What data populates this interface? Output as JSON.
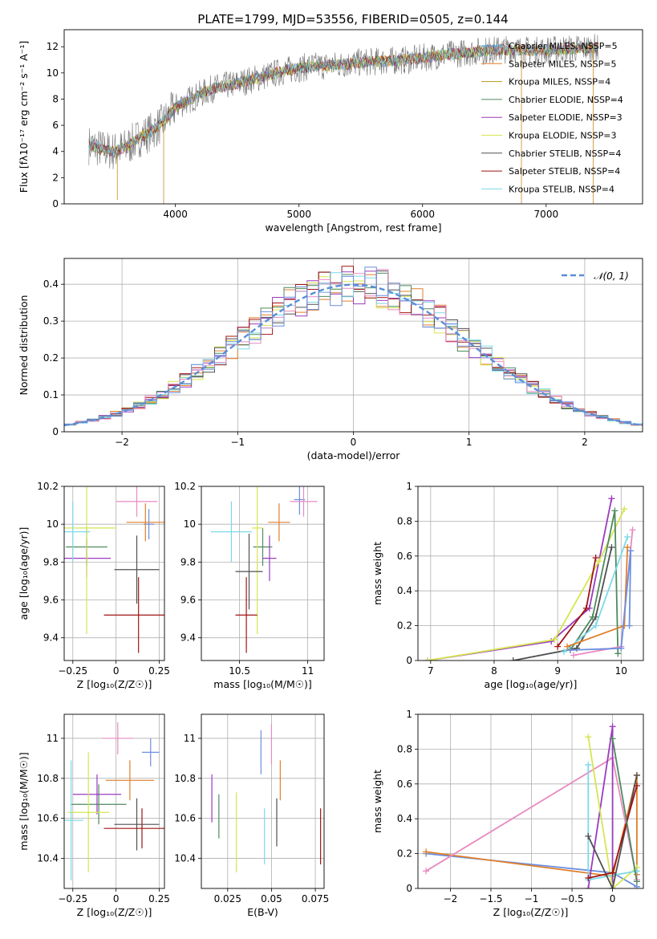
{
  "figure": {
    "title": "PLATE=1799, MJD=53556, FIBERID=0505, z=0.144"
  },
  "colors": [
    "#3E9EE3",
    "#E07F2A",
    "#B79A1C",
    "#4E8A5E",
    "#9A3BBF",
    "#D5E651",
    "#505050",
    "#A01515",
    "#7BD9E8"
  ],
  "chart_data": [
    {
      "id": "spectrum",
      "type": "line",
      "xlabel": "wavelength [Angstrom, rest frame]",
      "ylabel": "Flux [fλ10⁻¹⁷ erg cm⁻² s⁻¹ A⁻¹]",
      "xlim": [
        3100,
        7780
      ],
      "ylim": [
        0,
        13.3
      ],
      "xticks": [
        4000,
        5000,
        6000,
        7000
      ],
      "yticks": [
        0,
        2,
        4,
        6,
        8,
        10,
        12
      ],
      "grid": false,
      "legend": "upper right",
      "data_profile_x": [
        3300,
        3400,
        3500,
        3600,
        3700,
        3800,
        3900,
        4000,
        4100,
        4300,
        4500,
        4700,
        4900,
        5100,
        5300,
        5500,
        5700,
        5900,
        6100,
        6300,
        6500,
        6700,
        6900,
        7100,
        7300,
        7400
      ],
      "data_profile_y": [
        4.5,
        4.2,
        4.0,
        4.3,
        5.0,
        5.5,
        6.2,
        7.4,
        7.9,
        8.8,
        9.2,
        9.7,
        10.2,
        10.5,
        10.6,
        10.8,
        10.9,
        11.0,
        11.3,
        11.5,
        11.7,
        11.8,
        11.7,
        11.8,
        11.9,
        11.9
      ],
      "series": [
        {
          "name": "Chabrier MILES, NSSP=5"
        },
        {
          "name": "Salpeter MILES, NSSP=5"
        },
        {
          "name": "Kroupa MILES, NSSP=4"
        },
        {
          "name": "Chabrier ELODIE, NSSP=4"
        },
        {
          "name": "Salpeter ELODIE, NSSP=3"
        },
        {
          "name": "Kroupa ELODIE, NSSP=3"
        },
        {
          "name": "Chabrier STELIB, NSSP=4"
        },
        {
          "name": "Salpeter STELIB, NSSP=4"
        },
        {
          "name": "Kroupa STELIB, NSSP=4"
        }
      ]
    },
    {
      "id": "residuals",
      "type": "line",
      "xlabel": "(data-model)/error",
      "ylabel": "Normed distribution",
      "xlim": [
        -2.5,
        2.5
      ],
      "ylim": [
        0,
        0.47
      ],
      "xticks": [
        -2,
        -1,
        0,
        1,
        2
      ],
      "yticks": [
        0.0,
        0.1,
        0.2,
        0.3,
        0.4
      ],
      "grid": true,
      "legend": "upper right",
      "gauss_label": "𝒩(0, 1)",
      "bin_edges_start": -2.5,
      "bin_width": 0.1,
      "n_bins": 50
    },
    {
      "id": "age_vs_Z",
      "type": "scatter",
      "xlabel": "Z [log₁₀(Z/Z☉)]",
      "ylabel": "age  [log₁₀(age/yr)]",
      "xlim": [
        -0.3,
        0.28
      ],
      "ylim": [
        9.28,
        10.2
      ],
      "xticks": [
        -0.25,
        0.0,
        0.25
      ],
      "yticks": [
        9.4,
        9.6,
        9.8,
        10.0,
        10.2
      ],
      "grid": true,
      "points": [
        {
          "x": 0.19,
          "y": 10.0,
          "xerr": 0.03,
          "yerr": 0.08,
          "color": "#6B8FE0"
        },
        {
          "x": 0.12,
          "y": 10.12,
          "xerr": 0.12,
          "yerr": 0.08,
          "color": "#E88AC2"
        },
        {
          "x": 0.17,
          "y": 10.01,
          "xerr": 0.11,
          "yerr": 0.1,
          "color": "#E07F2A"
        },
        {
          "x": -0.17,
          "y": 9.88,
          "xerr": 0.12,
          "yerr": 0.1,
          "color": "#4E8A5E"
        },
        {
          "x": -0.17,
          "y": 9.82,
          "xerr": 0.14,
          "yerr": 0.1,
          "color": "#9A3BBF"
        },
        {
          "x": -0.17,
          "y": 9.98,
          "xerr": 0.17,
          "yerr": 0.56,
          "color": "#D5E651"
        },
        {
          "x": 0.12,
          "y": 9.76,
          "xerr": 0.13,
          "yerr": 0.18,
          "color": "#505050"
        },
        {
          "x": 0.13,
          "y": 9.52,
          "xerr": 0.2,
          "yerr": 0.2,
          "color": "#A01515"
        },
        {
          "x": -0.25,
          "y": 9.96,
          "xerr": 0.1,
          "yerr": 0.16,
          "color": "#7BD9E8"
        }
      ]
    },
    {
      "id": "age_vs_mass",
      "type": "scatter",
      "xlabel": "mass [log₁₀(M/M☉)]",
      "ylabel": "",
      "xlim": [
        10.22,
        11.12
      ],
      "ylim": [
        9.28,
        10.2
      ],
      "xticks": [
        10.5,
        11.0
      ],
      "yticks": [
        9.4,
        9.6,
        9.8,
        10.0,
        10.2
      ],
      "grid": true,
      "points": [
        {
          "x": 10.94,
          "y": 10.13,
          "xerr": 0.04,
          "yerr": 0.08,
          "color": "#6B8FE0"
        },
        {
          "x": 10.97,
          "y": 10.12,
          "xerr": 0.1,
          "yerr": 0.08,
          "color": "#E88AC2"
        },
        {
          "x": 10.79,
          "y": 10.01,
          "xerr": 0.08,
          "yerr": 0.1,
          "color": "#E07F2A"
        },
        {
          "x": 10.67,
          "y": 9.88,
          "xerr": 0.07,
          "yerr": 0.1,
          "color": "#4E8A5E"
        },
        {
          "x": 10.72,
          "y": 9.82,
          "xerr": 0.05,
          "yerr": 0.12,
          "color": "#9A3BBF"
        },
        {
          "x": 10.63,
          "y": 9.98,
          "xerr": 0.04,
          "yerr": 0.56,
          "color": "#D5E651"
        },
        {
          "x": 10.57,
          "y": 9.75,
          "xerr": 0.1,
          "yerr": 0.2,
          "color": "#505050"
        },
        {
          "x": 10.55,
          "y": 9.52,
          "xerr": 0.08,
          "yerr": 0.2,
          "color": "#A01515"
        },
        {
          "x": 10.44,
          "y": 9.96,
          "xerr": 0.15,
          "yerr": 0.16,
          "color": "#7BD9E8"
        }
      ]
    },
    {
      "id": "weight_vs_age",
      "type": "line",
      "xlabel": "age  [log₁₀(age/yr)]",
      "ylabel": "mass weight",
      "xlim": [
        6.8,
        10.35
      ],
      "ylim": [
        0,
        1.0
      ],
      "xticks": [
        7,
        8,
        9,
        10
      ],
      "yticks": [
        0.0,
        0.2,
        0.4,
        0.6,
        0.8,
        1.0
      ],
      "grid": true,
      "series": [
        {
          "color": "#9A3BBF",
          "x": [
            6.95,
            8.9,
            9.5,
            9.85
          ],
          "y": [
            0.0,
            0.11,
            0.3,
            0.93
          ]
        },
        {
          "color": "#D5E651",
          "x": [
            6.95,
            8.95,
            9.65,
            10.05
          ],
          "y": [
            0.0,
            0.12,
            0.57,
            0.87
          ]
        },
        {
          "color": "#505050",
          "x": [
            8.3,
            9.3,
            9.6,
            9.85
          ],
          "y": [
            0.0,
            0.07,
            0.25,
            0.65
          ]
        },
        {
          "color": "#4E8A5E",
          "x": [
            9.2,
            9.55,
            9.9,
            9.95
          ],
          "y": [
            0.06,
            0.25,
            0.86,
            0.04
          ]
        },
        {
          "color": "#A01515",
          "x": [
            9.0,
            9.45,
            9.6
          ],
          "y": [
            0.08,
            0.3,
            0.59
          ]
        },
        {
          "color": "#7BD9E8",
          "x": [
            9.1,
            9.6,
            10.1
          ],
          "y": [
            0.05,
            0.2,
            0.71
          ]
        },
        {
          "color": "#E88AC2",
          "x": [
            9.25,
            10.0,
            10.18
          ],
          "y": [
            0.03,
            0.08,
            0.75
          ]
        },
        {
          "color": "#E07F2A",
          "x": [
            9.15,
            10.05,
            10.1
          ],
          "y": [
            0.08,
            0.2,
            0.65
          ]
        },
        {
          "color": "#6B8FE0",
          "x": [
            9.2,
            10.0,
            10.15,
            10.13
          ],
          "y": [
            0.06,
            0.07,
            0.63,
            0.2
          ]
        }
      ]
    },
    {
      "id": "mass_vs_Z",
      "type": "scatter",
      "xlabel": "Z [log₁₀(Z/Z☉)]",
      "ylabel": "mass [log₁₀(M/M☉)]",
      "xlim": [
        -0.3,
        0.28
      ],
      "ylim": [
        10.25,
        11.12
      ],
      "xticks": [
        -0.25,
        0.0,
        0.25
      ],
      "yticks": [
        10.4,
        10.6,
        10.8,
        11.0
      ],
      "grid": true,
      "points": [
        {
          "x": 0.2,
          "y": 10.93,
          "xerr": 0.05,
          "yerr": 0.07,
          "color": "#6B8FE0"
        },
        {
          "x": 0.01,
          "y": 11.0,
          "xerr": 0.09,
          "yerr": 0.08,
          "color": "#E88AC2"
        },
        {
          "x": 0.08,
          "y": 10.79,
          "xerr": 0.14,
          "yerr": 0.1,
          "color": "#E07F2A"
        },
        {
          "x": -0.1,
          "y": 10.67,
          "xerr": 0.16,
          "yerr": 0.1,
          "color": "#4E8A5E"
        },
        {
          "x": -0.11,
          "y": 10.72,
          "xerr": 0.14,
          "yerr": 0.1,
          "color": "#9A3BBF"
        },
        {
          "x": -0.16,
          "y": 10.63,
          "xerr": 0.12,
          "yerr": 0.3,
          "color": "#D5E651"
        },
        {
          "x": 0.12,
          "y": 10.57,
          "xerr": 0.13,
          "yerr": 0.13,
          "color": "#505050"
        },
        {
          "x": 0.15,
          "y": 10.55,
          "xerr": 0.22,
          "yerr": 0.1,
          "color": "#A01515"
        },
        {
          "x": -0.26,
          "y": 10.59,
          "xerr": 0.07,
          "yerr": 0.3,
          "color": "#7BD9E8"
        }
      ]
    },
    {
      "id": "mass_vs_ebv",
      "type": "scatter",
      "xlabel": "E(B-V)",
      "ylabel": "",
      "xlim": [
        0.01,
        0.08
      ],
      "ylim": [
        10.25,
        11.12
      ],
      "xticks": [
        0.025,
        0.05,
        0.075
      ],
      "yticks": [
        10.4,
        10.6,
        10.8,
        11.0
      ],
      "grid": true,
      "points": [
        {
          "x": 0.044,
          "y": 10.93,
          "yerr": 0.11,
          "color": "#6B8FE0"
        },
        {
          "x": 0.05,
          "y": 10.97,
          "yerr": 0.1,
          "color": "#E88AC2"
        },
        {
          "x": 0.055,
          "y": 10.79,
          "yerr": 0.1,
          "color": "#E07F2A"
        },
        {
          "x": 0.02,
          "y": 10.61,
          "yerr": 0.11,
          "color": "#4E8A5E"
        },
        {
          "x": 0.016,
          "y": 10.7,
          "yerr": 0.12,
          "color": "#9A3BBF"
        },
        {
          "x": 0.03,
          "y": 10.53,
          "yerr": 0.2,
          "color": "#D5E651"
        },
        {
          "x": 0.053,
          "y": 10.58,
          "yerr": 0.12,
          "color": "#505050"
        },
        {
          "x": 0.078,
          "y": 10.51,
          "yerr": 0.14,
          "color": "#A01515"
        },
        {
          "x": 0.046,
          "y": 10.51,
          "yerr": 0.14,
          "color": "#7BD9E8"
        }
      ]
    },
    {
      "id": "weight_vs_Z",
      "type": "line",
      "xlabel": "Z [log₁₀(Z/Z☉)]",
      "ylabel": "mass weight",
      "xlim": [
        -2.4,
        0.38
      ],
      "ylim": [
        0,
        1.0
      ],
      "xticks": [
        -2.0,
        -1.5,
        -1.0,
        -0.5,
        0.0
      ],
      "yticks": [
        0.0,
        0.2,
        0.4,
        0.6,
        0.8,
        1.0
      ],
      "grid": true,
      "series": [
        {
          "color": "#6B8FE0",
          "x": [
            -2.3,
            0.0,
            0.3
          ],
          "y": [
            0.2,
            0.09,
            0.01
          ]
        },
        {
          "color": "#E07F2A",
          "x": [
            -2.3,
            0.0,
            0.3,
            0.3
          ],
          "y": [
            0.21,
            0.07,
            0.65,
            0.08
          ]
        },
        {
          "color": "#E88AC2",
          "x": [
            -2.3,
            0.0,
            0.3
          ],
          "y": [
            0.1,
            0.75,
            0.05
          ]
        },
        {
          "color": "#9A3BBF",
          "x": [
            -0.3,
            0.0,
            0.0
          ],
          "y": [
            0.0,
            0.93,
            0.0
          ]
        },
        {
          "color": "#D5E651",
          "x": [
            -0.3,
            0.0,
            0.3
          ],
          "y": [
            0.87,
            0.0,
            0.12
          ]
        },
        {
          "color": "#7BD9E8",
          "x": [
            -0.3,
            -0.3,
            0.3
          ],
          "y": [
            0.71,
            0.05,
            0.1
          ]
        },
        {
          "color": "#505050",
          "x": [
            -0.3,
            0.0,
            0.3
          ],
          "y": [
            0.3,
            0.0,
            0.65
          ]
        },
        {
          "color": "#A01515",
          "x": [
            -0.3,
            0.0,
            0.3
          ],
          "y": [
            0.06,
            0.09,
            0.59
          ]
        },
        {
          "color": "#4E8A5E",
          "x": [
            0.0,
            0.3
          ],
          "y": [
            0.86,
            0.04
          ]
        }
      ]
    }
  ]
}
